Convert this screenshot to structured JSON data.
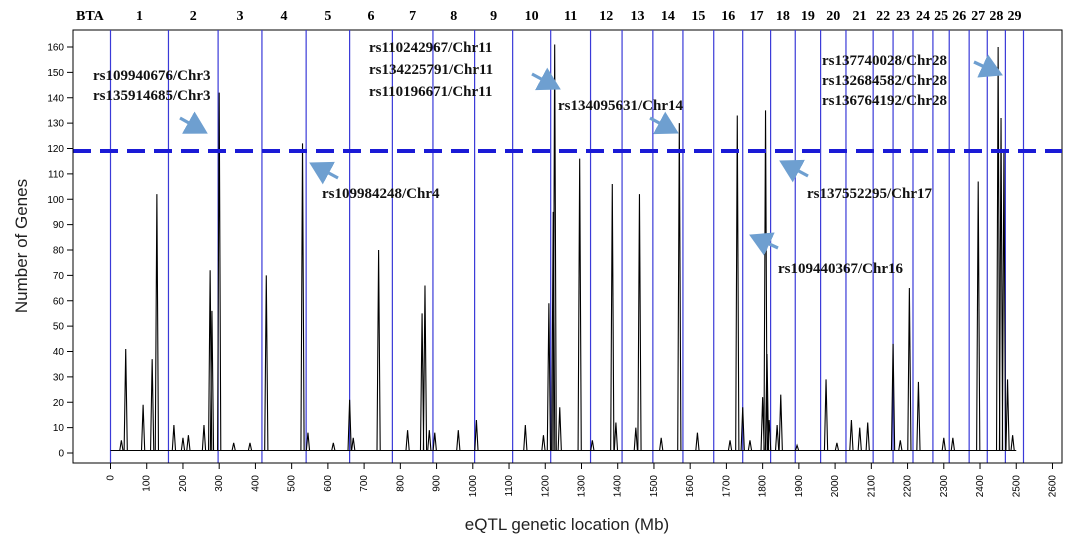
{
  "chart_data": {
    "type": "line",
    "title": "",
    "xlabel": "eQTL genetic location (Mb)",
    "ylabel": "Number of Genes",
    "xlim": [
      -100,
      2600
    ],
    "ylim": [
      0,
      165
    ],
    "xticks": [
      0,
      100,
      200,
      300,
      400,
      500,
      600,
      700,
      800,
      900,
      1000,
      1100,
      1200,
      1300,
      1400,
      1500,
      1600,
      1700,
      1800,
      1900,
      2000,
      2100,
      2200,
      2300,
      2400,
      2500,
      2600
    ],
    "yticks": [
      0,
      10,
      20,
      30,
      40,
      50,
      60,
      70,
      80,
      90,
      100,
      110,
      120,
      130,
      140,
      150,
      160
    ],
    "threshold": 119,
    "chromosome_header": "BTA",
    "chromosome_labels": [
      "1",
      "2",
      "3",
      "4",
      "5",
      "6",
      "7",
      "8",
      "9",
      "10",
      "11",
      "12",
      "13",
      "14",
      "15",
      "16",
      "17",
      "18",
      "19",
      "20",
      "21",
      "22",
      "23",
      "24",
      "25",
      "26",
      "27",
      "28",
      "29"
    ],
    "chromosome_boundaries": [
      0,
      160,
      297,
      418,
      540,
      660,
      778,
      890,
      1005,
      1110,
      1215,
      1325,
      1412,
      1497,
      1580,
      1665,
      1745,
      1822,
      1890,
      1960,
      2030,
      2105,
      2160,
      2215,
      2270,
      2315,
      2370,
      2420,
      2470,
      2520
    ],
    "peaks": [
      {
        "x": 30,
        "y": 5
      },
      {
        "x": 42,
        "y": 41
      },
      {
        "x": 90,
        "y": 19
      },
      {
        "x": 115,
        "y": 37
      },
      {
        "x": 128,
        "y": 102
      },
      {
        "x": 175,
        "y": 11
      },
      {
        "x": 200,
        "y": 6
      },
      {
        "x": 215,
        "y": 7
      },
      {
        "x": 258,
        "y": 11
      },
      {
        "x": 275,
        "y": 72
      },
      {
        "x": 280,
        "y": 56
      },
      {
        "x": 300,
        "y": 142
      },
      {
        "x": 340,
        "y": 4
      },
      {
        "x": 385,
        "y": 4
      },
      {
        "x": 430,
        "y": 70
      },
      {
        "x": 530,
        "y": 122
      },
      {
        "x": 545,
        "y": 8
      },
      {
        "x": 615,
        "y": 4
      },
      {
        "x": 660,
        "y": 21
      },
      {
        "x": 670,
        "y": 6
      },
      {
        "x": 740,
        "y": 80
      },
      {
        "x": 820,
        "y": 9
      },
      {
        "x": 860,
        "y": 55
      },
      {
        "x": 868,
        "y": 66
      },
      {
        "x": 880,
        "y": 9
      },
      {
        "x": 895,
        "y": 8
      },
      {
        "x": 960,
        "y": 9
      },
      {
        "x": 1010,
        "y": 13
      },
      {
        "x": 1145,
        "y": 11
      },
      {
        "x": 1195,
        "y": 7
      },
      {
        "x": 1210,
        "y": 59
      },
      {
        "x": 1222,
        "y": 95
      },
      {
        "x": 1226,
        "y": 161
      },
      {
        "x": 1240,
        "y": 18
      },
      {
        "x": 1295,
        "y": 116
      },
      {
        "x": 1330,
        "y": 5
      },
      {
        "x": 1385,
        "y": 106
      },
      {
        "x": 1395,
        "y": 12
      },
      {
        "x": 1450,
        "y": 10
      },
      {
        "x": 1460,
        "y": 102
      },
      {
        "x": 1520,
        "y": 6
      },
      {
        "x": 1570,
        "y": 130
      },
      {
        "x": 1620,
        "y": 8
      },
      {
        "x": 1710,
        "y": 5
      },
      {
        "x": 1730,
        "y": 133
      },
      {
        "x": 1745,
        "y": 18
      },
      {
        "x": 1765,
        "y": 5
      },
      {
        "x": 1800,
        "y": 22
      },
      {
        "x": 1808,
        "y": 135
      },
      {
        "x": 1812,
        "y": 39
      },
      {
        "x": 1818,
        "y": 13
      },
      {
        "x": 1840,
        "y": 11
      },
      {
        "x": 1850,
        "y": 23
      },
      {
        "x": 1895,
        "y": 3
      },
      {
        "x": 1975,
        "y": 29
      },
      {
        "x": 2005,
        "y": 4
      },
      {
        "x": 2045,
        "y": 13
      },
      {
        "x": 2068,
        "y": 10
      },
      {
        "x": 2090,
        "y": 12
      },
      {
        "x": 2160,
        "y": 43
      },
      {
        "x": 2180,
        "y": 5
      },
      {
        "x": 2205,
        "y": 65
      },
      {
        "x": 2230,
        "y": 28
      },
      {
        "x": 2300,
        "y": 6
      },
      {
        "x": 2325,
        "y": 6
      },
      {
        "x": 2395,
        "y": 107
      },
      {
        "x": 2450,
        "y": 160
      },
      {
        "x": 2458,
        "y": 132
      },
      {
        "x": 2466,
        "y": 119
      },
      {
        "x": 2476,
        "y": 29
      },
      {
        "x": 2490,
        "y": 7
      }
    ],
    "annotations": [
      {
        "lines": [
          "rs109940676/Chr3",
          "rs135914685/Chr3"
        ]
      },
      {
        "lines": [
          "rs109984248/Chr4"
        ]
      },
      {
        "lines": [
          "rs110242967/Chr11",
          "rs134225791/Chr11",
          "rs110196671/Chr11"
        ]
      },
      {
        "lines": [
          "rs134095631/Chr14"
        ]
      },
      {
        "lines": [
          "rs109440367/Chr16"
        ]
      },
      {
        "lines": [
          "rs137552295/Chr17"
        ]
      },
      {
        "lines": [
          "rs137740028/Chr28",
          "rs132684582/Chr28",
          "rs136764192/Chr28"
        ]
      }
    ],
    "colors": {
      "line": "#000000",
      "threshold": "#1a1ad6",
      "boundary": "#3a3ad8",
      "arrow": "#6e9fd0"
    }
  }
}
